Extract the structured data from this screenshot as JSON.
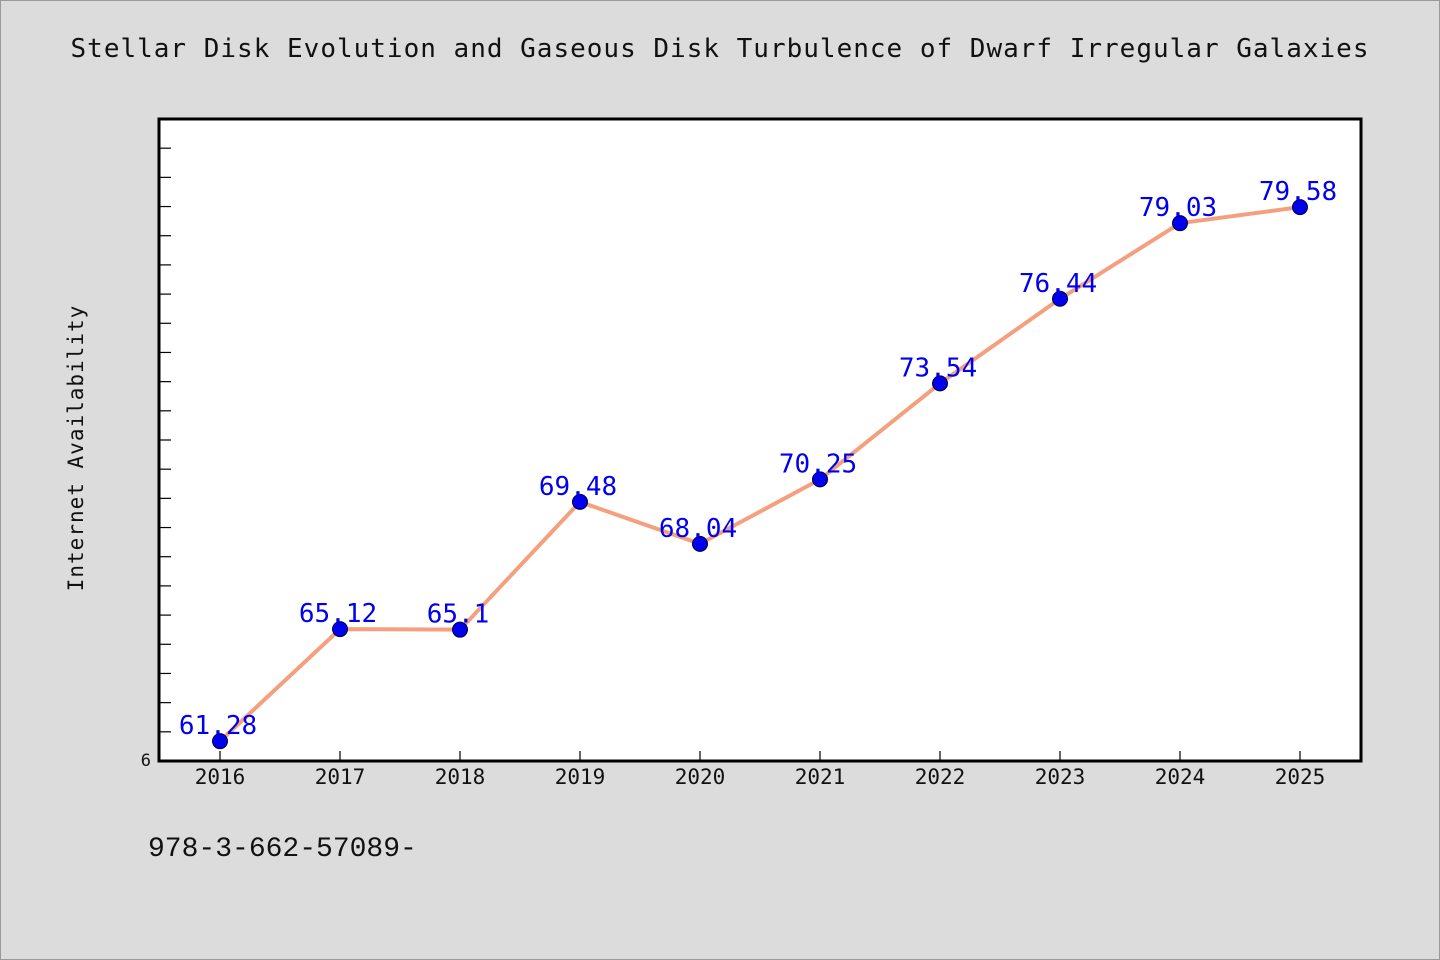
{
  "page": {
    "isbn_text": "978-3-662-57089-"
  },
  "chart_data": {
    "type": "line",
    "title": "Stellar Disk Evolution and Gaseous Disk Turbulence of Dwarf Irregular Galaxies",
    "xlabel": "",
    "ylabel": "Internet Availability",
    "categories": [
      "2016",
      "2017",
      "2018",
      "2019",
      "2020",
      "2021",
      "2022",
      "2023",
      "2024",
      "2025"
    ],
    "series": [
      {
        "values": [
          61.28,
          65.12,
          65.1,
          69.48,
          68.04,
          70.25,
          73.54,
          76.44,
          79.03,
          79.58
        ],
        "line_color": "#f4a07e",
        "marker_color": "#0000ee",
        "label_color": "#0000ee"
      }
    ],
    "data_labels": [
      "61.28",
      "65.12",
      "65.1",
      "69.48",
      "68.04",
      "70.25",
      "73.54",
      "76.44",
      "79.03",
      "79.58"
    ],
    "ylim": [
      60.6,
      82.6
    ],
    "y_tick_labels": [
      {
        "value": 60.6,
        "label": "6"
      }
    ],
    "y_minor_step": 1,
    "grid": false,
    "legend": "none",
    "colors": {
      "background": "#dcdcdc",
      "plot_background": "#ffffff",
      "axis": "#000000"
    }
  }
}
